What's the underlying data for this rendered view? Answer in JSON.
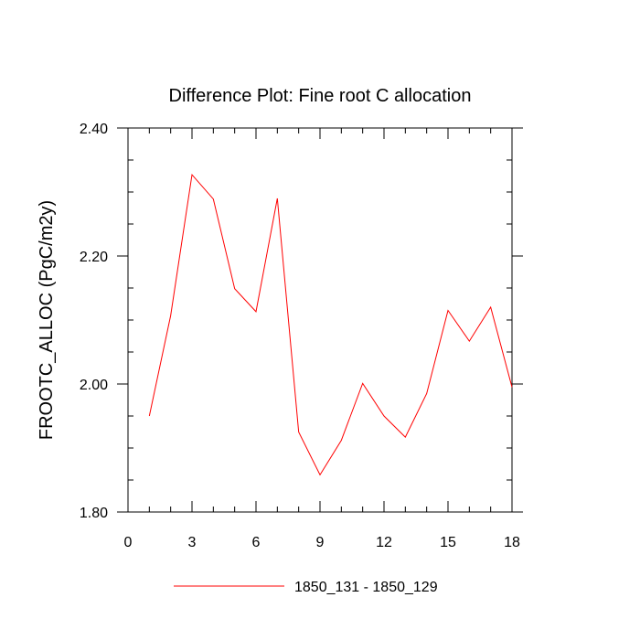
{
  "chart_data": {
    "type": "line",
    "title": "Difference Plot: Fine root C allocation",
    "xlabel": "",
    "ylabel": "FROOTC_ALLOC  (PgC/m2y)",
    "xlim": [
      0,
      18
    ],
    "ylim": [
      1.8,
      2.4
    ],
    "x_ticks": [
      "0",
      "3",
      "6",
      "9",
      "12",
      "15",
      "18"
    ],
    "y_ticks": [
      "1.80",
      "2.00",
      "2.20",
      "2.40"
    ],
    "grid": false,
    "legend_position": "bottom-center",
    "series": [
      {
        "name": "1850_131 - 1850_129",
        "color": "#ff0000",
        "x": [
          1,
          2,
          3,
          4,
          5,
          6,
          7,
          8,
          9,
          10,
          11,
          12,
          13,
          14,
          15,
          16,
          17,
          18
        ],
        "y": [
          1.95,
          2.107,
          2.327,
          2.289,
          2.149,
          2.113,
          2.29,
          1.925,
          1.858,
          1.912,
          2.001,
          1.95,
          1.917,
          1.985,
          2.115,
          2.067,
          2.12,
          1.995
        ]
      }
    ]
  }
}
